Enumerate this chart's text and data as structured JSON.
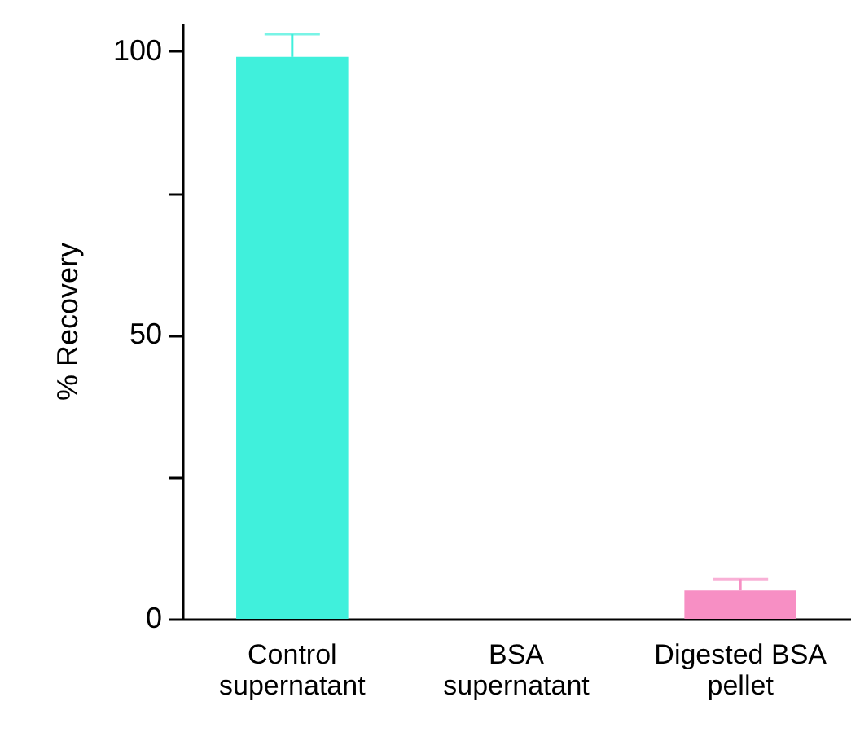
{
  "chart_data": {
    "type": "bar",
    "ylabel": "% Recovery",
    "categories": [
      "Control supernatant",
      "BSA supernatant",
      "Digested BSA pellet"
    ],
    "values": [
      99,
      0,
      5
    ],
    "colors": [
      "#40f0dc",
      "#40f0dc",
      "#f78fc4"
    ],
    "errors": [
      [
        99,
        103
      ],
      null,
      [
        5,
        7
      ]
    ],
    "ylim": [
      0,
      105
    ],
    "yticks": [
      0,
      {
        "value": 25,
        "label": null
      },
      50,
      {
        "value": 75,
        "label": null
      },
      100
    ],
    "grid": false
  }
}
